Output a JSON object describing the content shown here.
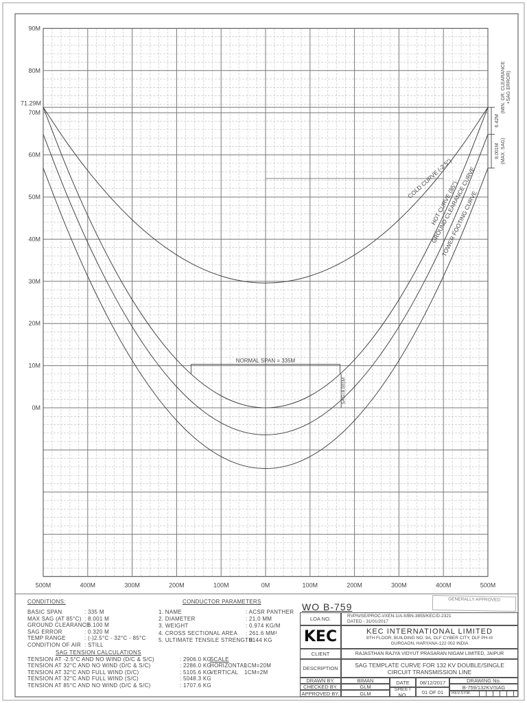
{
  "chart_data": {
    "type": "line",
    "title": "",
    "xlabel": "",
    "ylabel": "",
    "xlim": [
      -500,
      500
    ],
    "ylim": [
      -40,
      90
    ],
    "grid": true,
    "x_tick_labels": [
      "500M",
      "400M",
      "300M",
      "200M",
      "100M",
      "0M",
      "100M",
      "200M",
      "300M",
      "400M",
      "500M"
    ],
    "x_ticks": [
      -500,
      -400,
      -300,
      -200,
      -100,
      0,
      100,
      200,
      300,
      400,
      500
    ],
    "y_tick_labels": [
      "90M",
      "80M",
      "70M",
      "60M",
      "50M",
      "40M",
      "30M",
      "20M",
      "10M",
      "0M"
    ],
    "y_ticks": [
      90,
      80,
      70,
      60,
      50,
      40,
      30,
      20,
      10,
      0
    ],
    "special_y_label": "71.29M",
    "special_y_value": 71.29,
    "x": [
      -500,
      -450,
      -400,
      -350,
      -300,
      -250,
      -200,
      -150,
      -100,
      -50,
      0,
      50,
      100,
      150,
      200,
      250,
      300,
      350,
      400,
      450,
      500
    ],
    "series": [
      {
        "name": "COLD CURVE (-2.5°)",
        "values": [
          71.29,
          63.37,
          56.28,
          50.03,
          44.61,
          40.02,
          36.27,
          33.35,
          31.27,
          30.02,
          29.6,
          30.02,
          31.27,
          33.35,
          36.27,
          40.02,
          44.61,
          50.03,
          56.28,
          63.37,
          71.29
        ]
      },
      {
        "name": "HOT CURVE (85°)",
        "values": [
          71.29,
          57.75,
          45.63,
          34.93,
          25.66,
          17.82,
          11.41,
          6.42,
          2.85,
          0.71,
          0,
          0.71,
          2.85,
          6.42,
          11.41,
          17.82,
          25.66,
          34.93,
          45.63,
          57.75,
          71.29
        ]
      },
      {
        "name": "GROUND CLEARANCE CURVE",
        "values": [
          64.87,
          51.33,
          39.21,
          28.51,
          19.24,
          11.4,
          4.99,
          0.0,
          -3.57,
          -5.71,
          -6.42,
          -5.71,
          -3.57,
          0.0,
          4.99,
          11.4,
          19.24,
          28.51,
          39.21,
          51.33,
          64.87
        ]
      },
      {
        "name": "TOWER FOOTING CURVE",
        "values": [
          56.87,
          43.33,
          31.21,
          20.51,
          11.24,
          3.4,
          -3.01,
          -8.0,
          -11.57,
          -13.71,
          -14.42,
          -13.71,
          -11.57,
          -8.0,
          -3.01,
          3.4,
          11.24,
          20.51,
          31.21,
          43.33,
          56.87
        ]
      }
    ],
    "annotations": {
      "normal_span": "NORMAL SPAN = 335M",
      "sag": "SAG=8.001M",
      "dim_clearance": "6.42M",
      "dim_clearance_note": "(MIN. GR. CLEARANCE",
      "dim_clearance_note2": "+SAG ERROR)",
      "dim_sag": "8.001M",
      "dim_sag_note": "(MAX. SAG)"
    },
    "colors": {
      "curve": "#444444",
      "grid_major": "#777777",
      "grid_minor": "#bbbbbb"
    }
  },
  "conditions": {
    "title": "CONDITIONS:",
    "rows": [
      {
        "label": "BASIC SPAN",
        "value": ": 335 M"
      },
      {
        "label": "MAX SAG (AT 85°C)",
        "value": ": 8.001 M"
      },
      {
        "label": "GROUND CLEARANCE",
        "value": ": 6.100 M"
      },
      {
        "label": "SAG ERROR",
        "value": ": 0.320 M"
      },
      {
        "label": "TEMP RANGE",
        "value": ": (-)2.5°C - 32°C - 85°C"
      },
      {
        "label": "CONDITION OF AIR",
        "value": ": STILL"
      }
    ]
  },
  "conductor": {
    "title": "CONDUCTOR PARAMETERS",
    "rows": [
      {
        "label": "1. NAME",
        "value": ": ACSR PANTHER"
      },
      {
        "label": "2. DIAMETER",
        "value": ": 21.0 MM"
      },
      {
        "label": "3. WEIGHT",
        "value": ": 0.974 KG/M"
      },
      {
        "label": "4. CROSS SECTIONAL AREA",
        "value": ": 261.6 MM²"
      },
      {
        "label": "5. ULTIMATE TENSILE STRENGTH",
        "value": ": 9144 KG"
      }
    ]
  },
  "tension": {
    "title": "SAG TENSION CALCULATIONS",
    "rows": [
      {
        "label": "TENSION AT -2.5°C AND NO WIND (D/C & S/C)",
        "value": ": 2906.0 KG"
      },
      {
        "label": "TENSION AT 32°C AND NO WIND (D/C & S/C)",
        "value": ": 2286.0 KG"
      },
      {
        "label": "TENSION AT 32°C AND FULL WIND (D/C)",
        "value": ": 5105.6 KG"
      },
      {
        "label": "TENSION AT 32°C AND FULL WIND (S/C)",
        "value": ": 5048.3 KG"
      },
      {
        "label": "TENSION AT 85°C AND NO WIND (D/C & S/C)",
        "value": ": 1707.6 KG"
      }
    ]
  },
  "scale": {
    "title": "SCALE",
    "rows": [
      {
        "label": "HORIZONTAL",
        "value": "1CM=20M"
      },
      {
        "label": "VERTICAL",
        "value": "1CM=2M"
      }
    ]
  },
  "title_block": {
    "wo": "WO B-759",
    "loa_label": "LOA NO.",
    "loa_value": "RVPN/SE/PROC-I/XEN-1/A-II/BN-3855/KEC/D-2321",
    "loa_dated": "DATED - 31/01/2017",
    "logo": "KEC",
    "company": "KEC INTERNATIONAL LIMITED",
    "address1": "8TH FLOOR, BUILDING NO. 9A, DLF CYBER CITY, DLF PH-III",
    "address2": "GURGAON, HARYANA-122 002 INDIA",
    "client_label": "CLIENT",
    "client_value": "RAJASTHAN RAJYA VIDYUT PRASARAN NIGAM LIMITED, JAIPUR",
    "desc_label": "DESCRIPTION",
    "desc_value1": "SAG TEMPLATE CURVE FOR 132 KV DOUBLE/SINGLE",
    "desc_value2": "CIRCUIT TRANSMISSION LINE",
    "drawn_label": "DRAWN BY.",
    "drawn_value": "BIMAN",
    "checked_label": "CHECKED BY.",
    "checked_value": "GLM",
    "approved_label": "APPROVED BY.",
    "approved_value": "GLM",
    "date_label": "DATE",
    "date_value": "08/12/2017",
    "sheet_label": "SHEET NO.",
    "sheet_value": "01 OF 01",
    "drawing_no_label": "DRAWING No.",
    "drawing_no_value": "B-759/132KV/SAG",
    "rev_label": "REV.SYM.",
    "stamp": "GENERALLY APPROVED"
  }
}
